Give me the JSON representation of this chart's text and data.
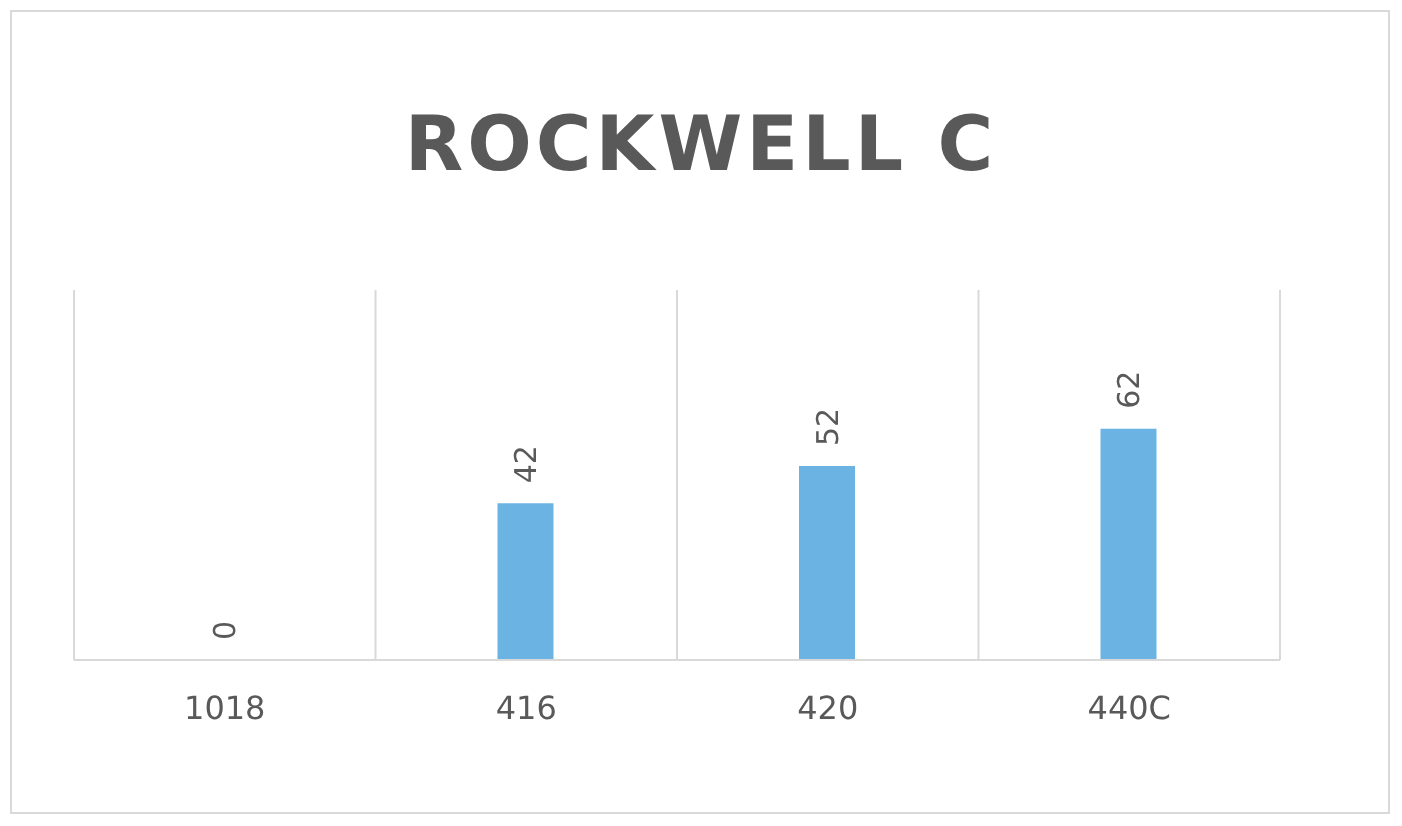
{
  "chart_data": {
    "type": "bar",
    "title": "ROCKWELL C",
    "categories": [
      "1018",
      "416",
      "420",
      "440C"
    ],
    "values": [
      0,
      42,
      52,
      62
    ],
    "color": "#6bb3e3",
    "data_labels": true,
    "grid": "x"
  }
}
